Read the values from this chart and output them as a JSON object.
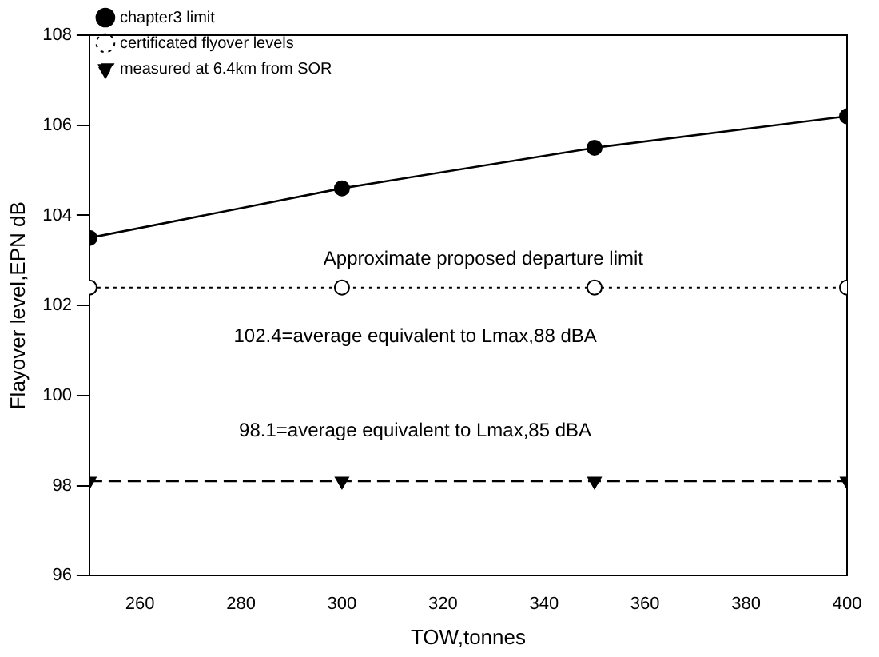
{
  "chart_data": {
    "type": "line",
    "xlabel": "TOW,tonnes",
    "ylabel": "Flayover level,EPN dB",
    "x": [
      250,
      300,
      350,
      400
    ],
    "series": [
      {
        "name": "chapter3 limit",
        "color": "#000000",
        "values": [
          103.5,
          104.6,
          105.5,
          106.2
        ],
        "marker": "circle",
        "line_style": "solid"
      },
      {
        "name": "certificated flyover levels",
        "color": "#000000",
        "values": [
          102.4,
          102.4,
          102.4,
          102.4
        ],
        "marker": "circle",
        "line_style": "dotted"
      },
      {
        "name": "measured at 6.4km from SOR",
        "color": "#000000",
        "values": [
          98.1,
          98.1,
          98.1,
          98.1
        ],
        "marker": "triangle",
        "line_style": "dashed"
      }
    ],
    "xlim": [
      250,
      400
    ],
    "xticks": [
      260,
      280,
      300,
      320,
      340,
      360,
      380,
      400
    ],
    "ylim": [
      96,
      108
    ],
    "yticks": [
      96,
      98,
      100,
      102,
      104,
      106,
      108
    ],
    "annotations": [
      "Approximate proposed departure limit",
      "102.4=average equivalent to Lmax,88 dBA",
      "98.1=average equivalent to Lmax,85 dBA"
    ],
    "grid": false,
    "legend": "top left"
  }
}
